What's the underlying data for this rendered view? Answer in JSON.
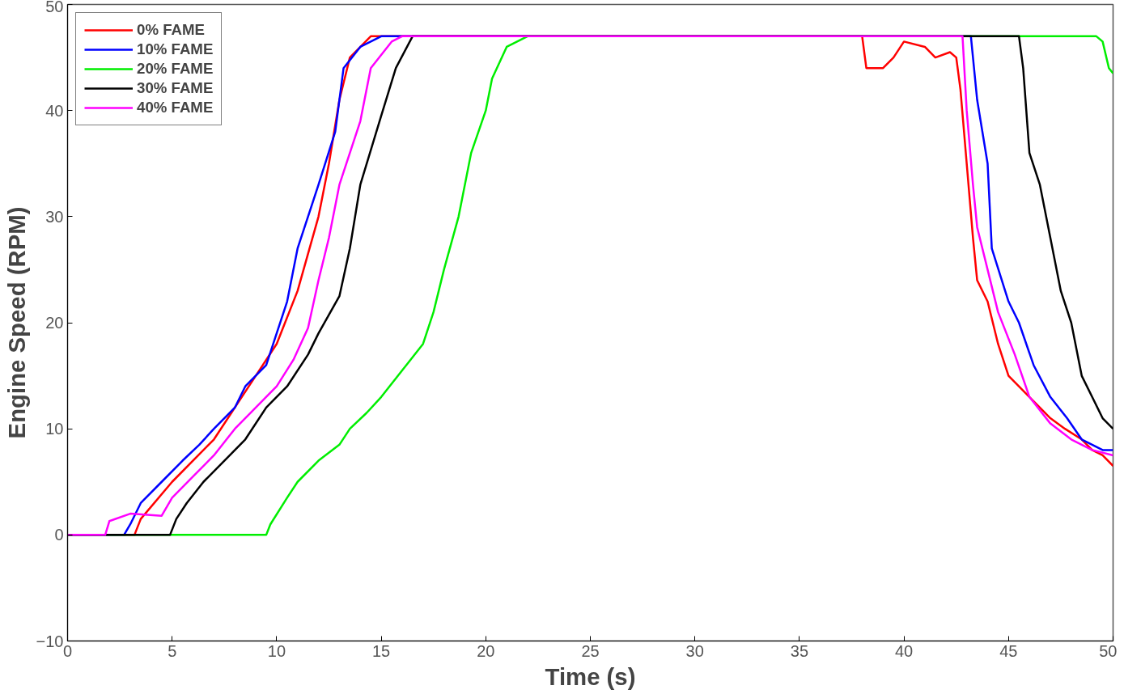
{
  "chart_data": {
    "type": "line",
    "xlabel": "Time (s)",
    "ylabel": "Engine Speed (RPM)",
    "xlim": [
      0,
      50
    ],
    "ylim": [
      -10,
      50
    ],
    "xticks": [
      0,
      5,
      10,
      15,
      20,
      25,
      30,
      35,
      40,
      45,
      50
    ],
    "yticks": [
      -10,
      0,
      10,
      20,
      30,
      40,
      50
    ],
    "grid": false,
    "legend": "top left",
    "marker": "none",
    "line_style": "solid",
    "series": [
      {
        "name": "0% FAME",
        "color": "#ff0000",
        "x": [
          0,
          3.2,
          3.5,
          5,
          7,
          8,
          9,
          10,
          11,
          12,
          12.5,
          13,
          13.5,
          14.5,
          15,
          38,
          38.2,
          39,
          39.5,
          40,
          41,
          41.5,
          42.2,
          42.5,
          42.7,
          43,
          43.3,
          43.5,
          44,
          44.5,
          45,
          46,
          47,
          47.7,
          48.5,
          49,
          49.5,
          50
        ],
        "values": [
          0,
          0,
          1.5,
          5,
          9,
          12,
          15,
          18,
          23,
          30,
          35,
          41,
          45,
          47,
          47,
          47,
          44,
          44,
          45,
          46.5,
          46,
          45,
          45.5,
          45,
          42,
          35,
          28,
          24,
          22,
          18,
          15,
          13,
          11,
          10,
          9,
          8,
          7.5,
          6.5
        ]
      },
      {
        "name": "10% FAME",
        "color": "#0000ff",
        "x": [
          0,
          2.7,
          3,
          3.5,
          4.5,
          5.5,
          6.3,
          7,
          8,
          8.5,
          9.5,
          10,
          10.5,
          11,
          12,
          12.8,
          13.2,
          14,
          15,
          43.2,
          43.5,
          44,
          44.2,
          45,
          45.5,
          46.2,
          47,
          47.8,
          48.5,
          49.5,
          50
        ],
        "values": [
          0,
          0,
          1,
          3,
          5,
          7,
          8.5,
          10,
          12,
          14,
          16,
          19,
          22,
          27,
          33,
          38,
          44,
          46,
          47,
          47,
          41,
          35,
          27,
          22,
          20,
          16,
          13,
          11,
          9,
          8,
          8
        ]
      },
      {
        "name": "20% FAME",
        "color": "#00ee00",
        "x": [
          0,
          9.5,
          9.7,
          10.5,
          11,
          12,
          13,
          13.5,
          14.3,
          15,
          16,
          17,
          17.5,
          18,
          18.7,
          19.3,
          20,
          20.3,
          21,
          22,
          49.2,
          49.5,
          49.8,
          50
        ],
        "values": [
          0,
          0,
          1,
          3.5,
          5,
          7,
          8.5,
          10,
          11.5,
          13,
          15.5,
          18,
          21,
          25,
          30,
          36,
          40,
          43,
          46,
          47,
          47,
          46.5,
          44,
          43.5
        ]
      },
      {
        "name": "30% FAME",
        "color": "#000000",
        "x": [
          0,
          4.9,
          5.2,
          5.7,
          6.5,
          7.5,
          8.5,
          9.5,
          10.5,
          11.5,
          12,
          13,
          13.5,
          14,
          15,
          15.7,
          16.5,
          45.5,
          45.7,
          46,
          46.5,
          47,
          47.5,
          48,
          48.5,
          49,
          49.5,
          50
        ],
        "values": [
          0,
          0,
          1.5,
          3,
          5,
          7,
          9,
          12,
          14,
          17,
          19,
          22.5,
          27,
          33,
          39.5,
          44,
          47,
          47,
          44,
          36,
          33,
          28,
          23,
          20,
          15,
          13,
          11,
          10
        ]
      },
      {
        "name": "40% FAME",
        "color": "#ff00ff",
        "x": [
          0,
          1.8,
          2,
          3,
          4.5,
          5,
          6,
          7,
          8,
          9,
          10,
          10.8,
          11.5,
          12,
          12.5,
          13,
          14,
          14.5,
          15.5,
          16,
          42.8,
          43,
          43.3,
          43.5,
          44,
          44.5,
          45.3,
          46,
          47,
          48,
          49,
          50
        ],
        "values": [
          0,
          0,
          1.3,
          2,
          1.8,
          3.5,
          5.5,
          7.5,
          10,
          12,
          14,
          16.5,
          19.5,
          24,
          28,
          33,
          39,
          44,
          46.5,
          47,
          47,
          40,
          33,
          29,
          25,
          21,
          17,
          13,
          10.5,
          9,
          8,
          7.5
        ]
      }
    ]
  }
}
